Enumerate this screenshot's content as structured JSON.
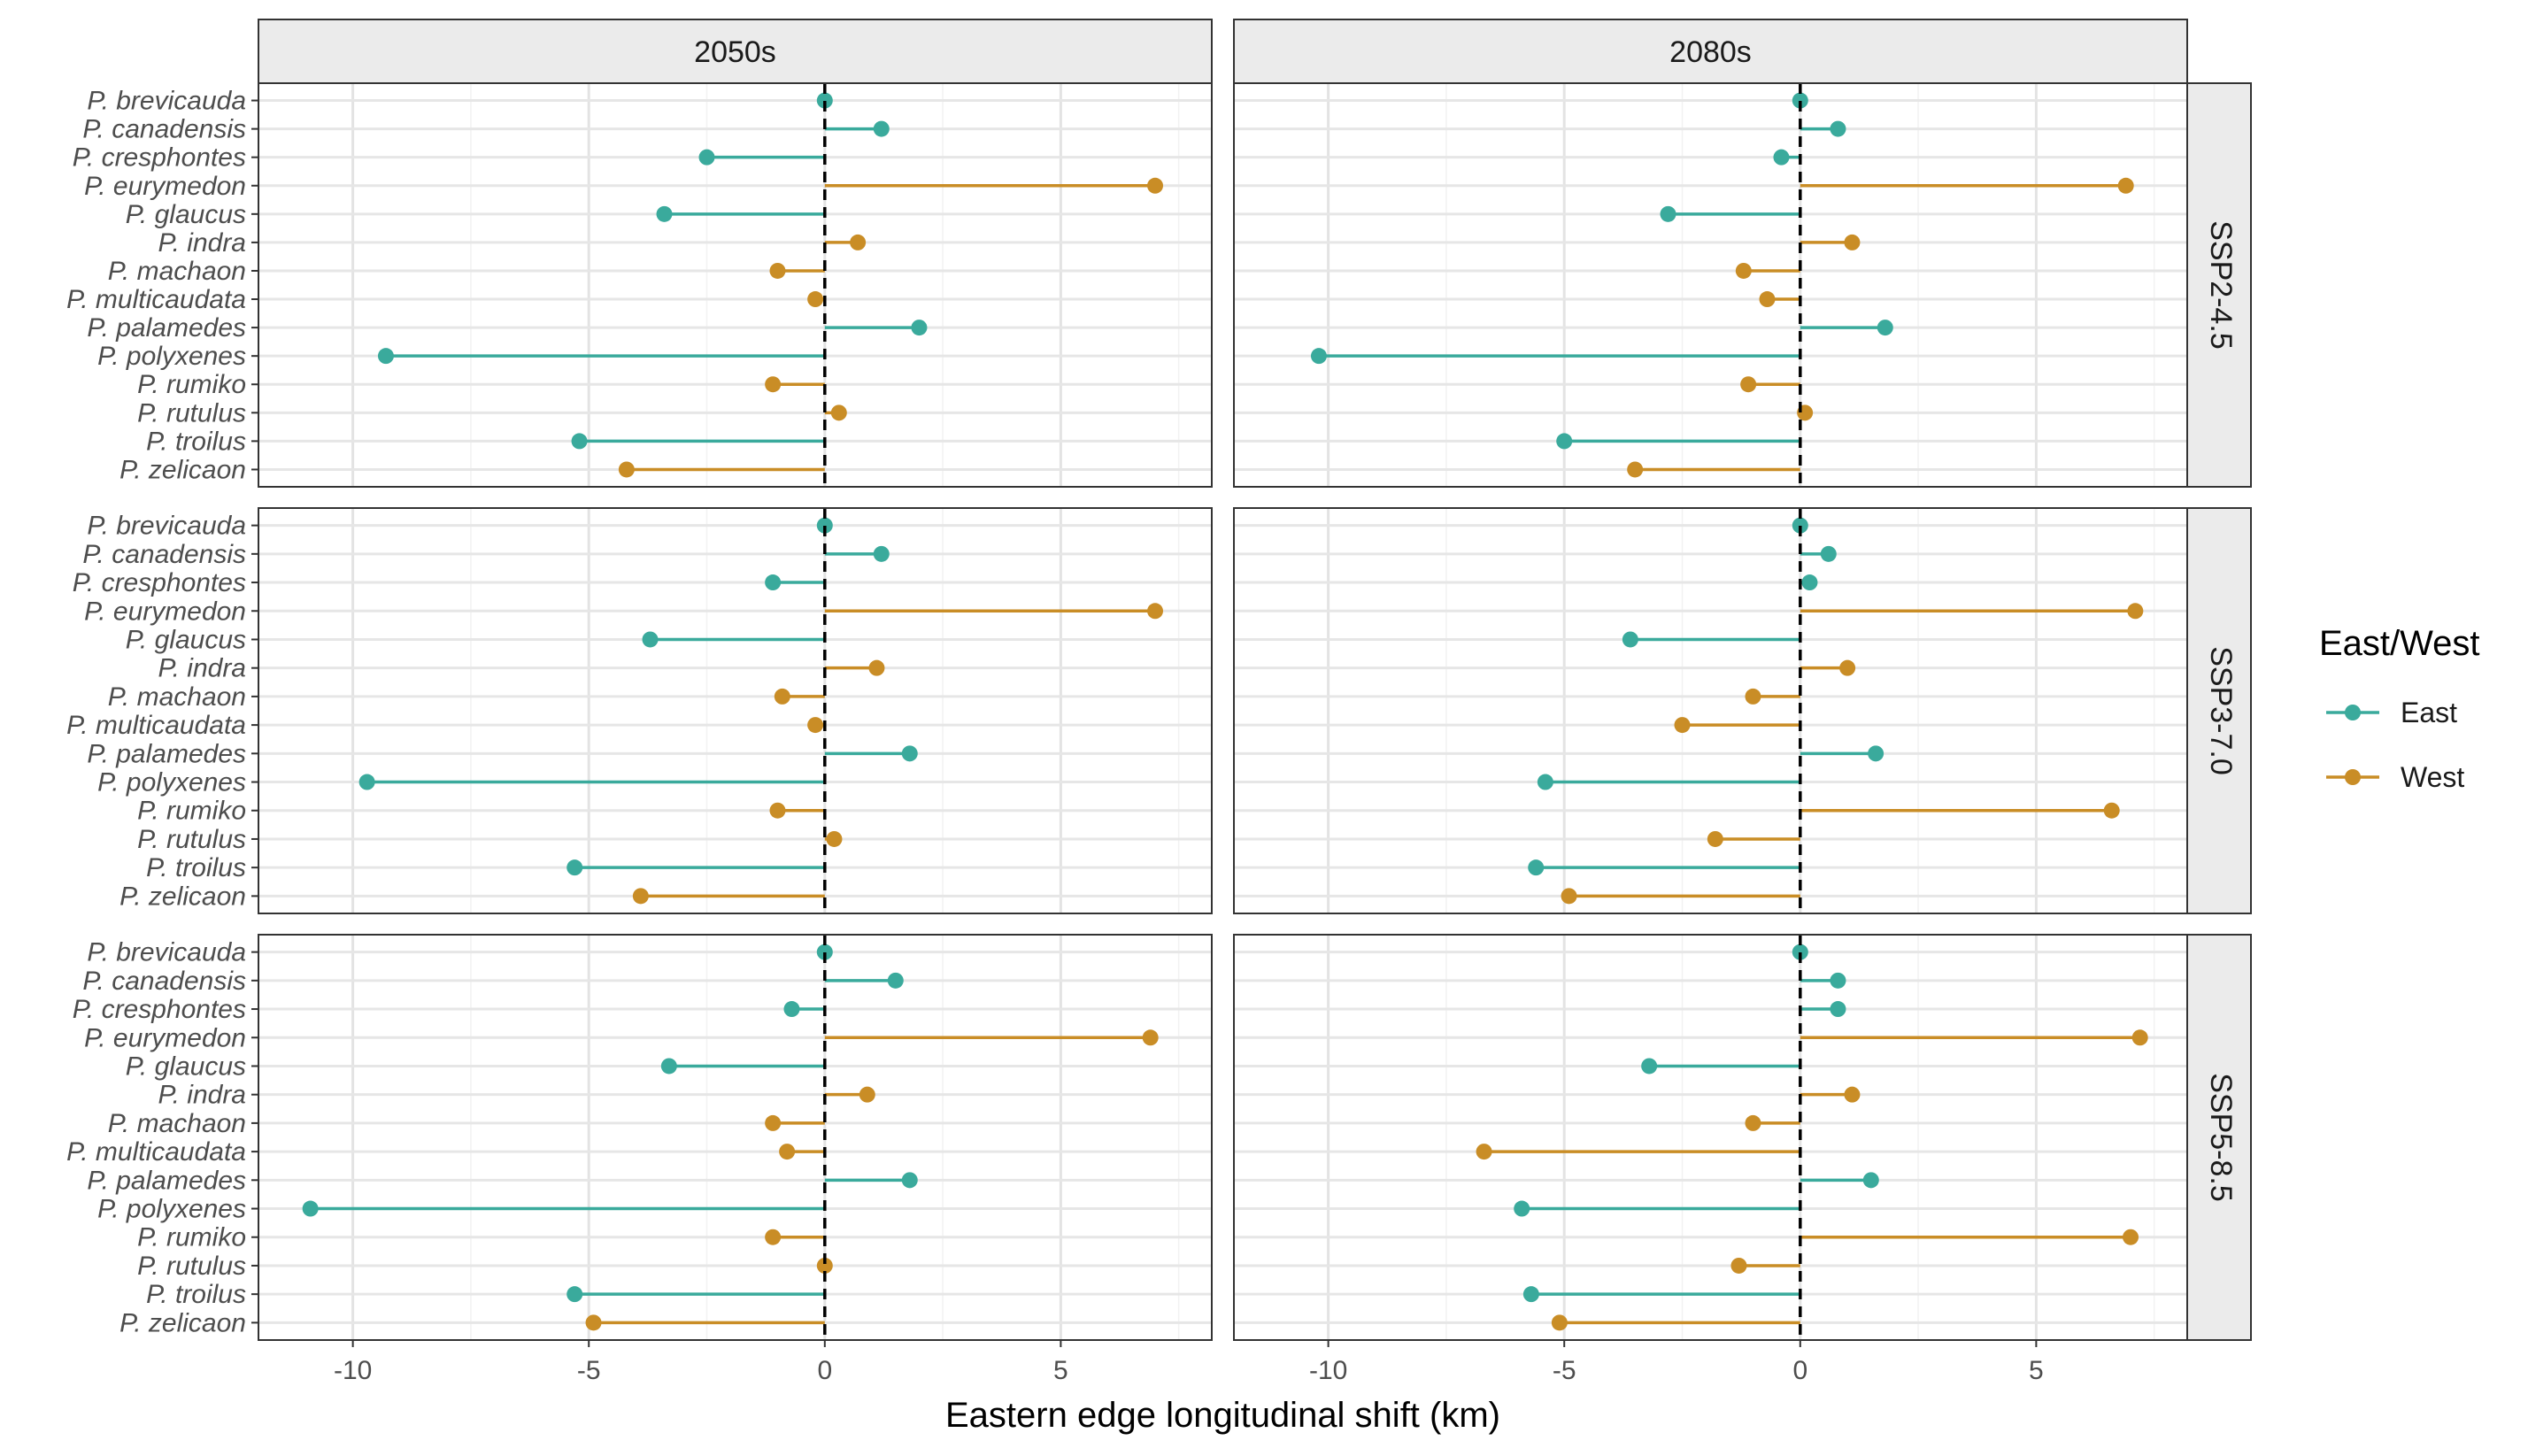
{
  "chart_data": {
    "type": "lollipop",
    "xlabel": "Eastern edge longitudinal shift (km)",
    "xlim": [
      -12.0,
      8.2
    ],
    "xticks": [
      -10,
      -5,
      0,
      5
    ],
    "xtick_labels": [
      "-10",
      "-5",
      "0",
      "5"
    ],
    "reference_line_x": 0,
    "grid": true,
    "legend": {
      "title": "East/West",
      "placement": "right",
      "entries": [
        {
          "label": "East",
          "color": "#3aaa9c"
        },
        {
          "label": "West",
          "color": "#c98d26"
        }
      ]
    },
    "columns": [
      "2050s",
      "2080s"
    ],
    "rows": [
      "SSP2-4.5",
      "SSP3-7.0",
      "SSP5-8.5"
    ],
    "species": [
      "P. brevicauda",
      "P. canadensis",
      "P. cresphontes",
      "P. eurymedon",
      "P. glaucus",
      "P. indra",
      "P. machaon",
      "P. multicaudata",
      "P. palamedes",
      "P. polyxenes",
      "P. rumiko",
      "P. rutulus",
      "P. troilus",
      "P. zelicaon"
    ],
    "groups": [
      "East",
      "East",
      "East",
      "West",
      "East",
      "West",
      "West",
      "West",
      "East",
      "East",
      "West",
      "West",
      "East",
      "West"
    ],
    "panels": [
      {
        "row": "SSP2-4.5",
        "col": "2050s",
        "values": [
          0.0,
          1.2,
          -2.5,
          7.0,
          -3.4,
          0.7,
          -1.0,
          -0.2,
          2.0,
          -9.3,
          -1.1,
          0.3,
          -5.2,
          -4.2
        ]
      },
      {
        "row": "SSP2-4.5",
        "col": "2080s",
        "values": [
          0.0,
          0.8,
          -0.4,
          6.9,
          -2.8,
          1.1,
          -1.2,
          -0.7,
          1.8,
          -10.2,
          -1.1,
          0.1,
          -5.0,
          -3.5
        ]
      },
      {
        "row": "SSP3-7.0",
        "col": "2050s",
        "values": [
          0.0,
          1.2,
          -1.1,
          7.0,
          -3.7,
          1.1,
          -0.9,
          -0.2,
          1.8,
          -9.7,
          -1.0,
          0.2,
          -5.3,
          -3.9
        ]
      },
      {
        "row": "SSP3-7.0",
        "col": "2080s",
        "values": [
          0.0,
          0.6,
          0.2,
          7.1,
          -3.6,
          1.0,
          -1.0,
          -2.5,
          1.6,
          -5.4,
          6.6,
          -1.8,
          -5.6,
          -4.9
        ]
      },
      {
        "row": "SSP5-8.5",
        "col": "2050s",
        "values": [
          0.0,
          1.5,
          -0.7,
          6.9,
          -3.3,
          0.9,
          -1.1,
          -0.8,
          1.8,
          -10.9,
          -1.1,
          0.0,
          -5.3,
          -4.9
        ]
      },
      {
        "row": "SSP5-8.5",
        "col": "2080s",
        "values": [
          0.0,
          0.8,
          0.8,
          7.2,
          -3.2,
          1.1,
          -1.0,
          -6.7,
          1.5,
          -5.9,
          7.0,
          -1.3,
          -5.7,
          -5.1
        ]
      }
    ]
  }
}
